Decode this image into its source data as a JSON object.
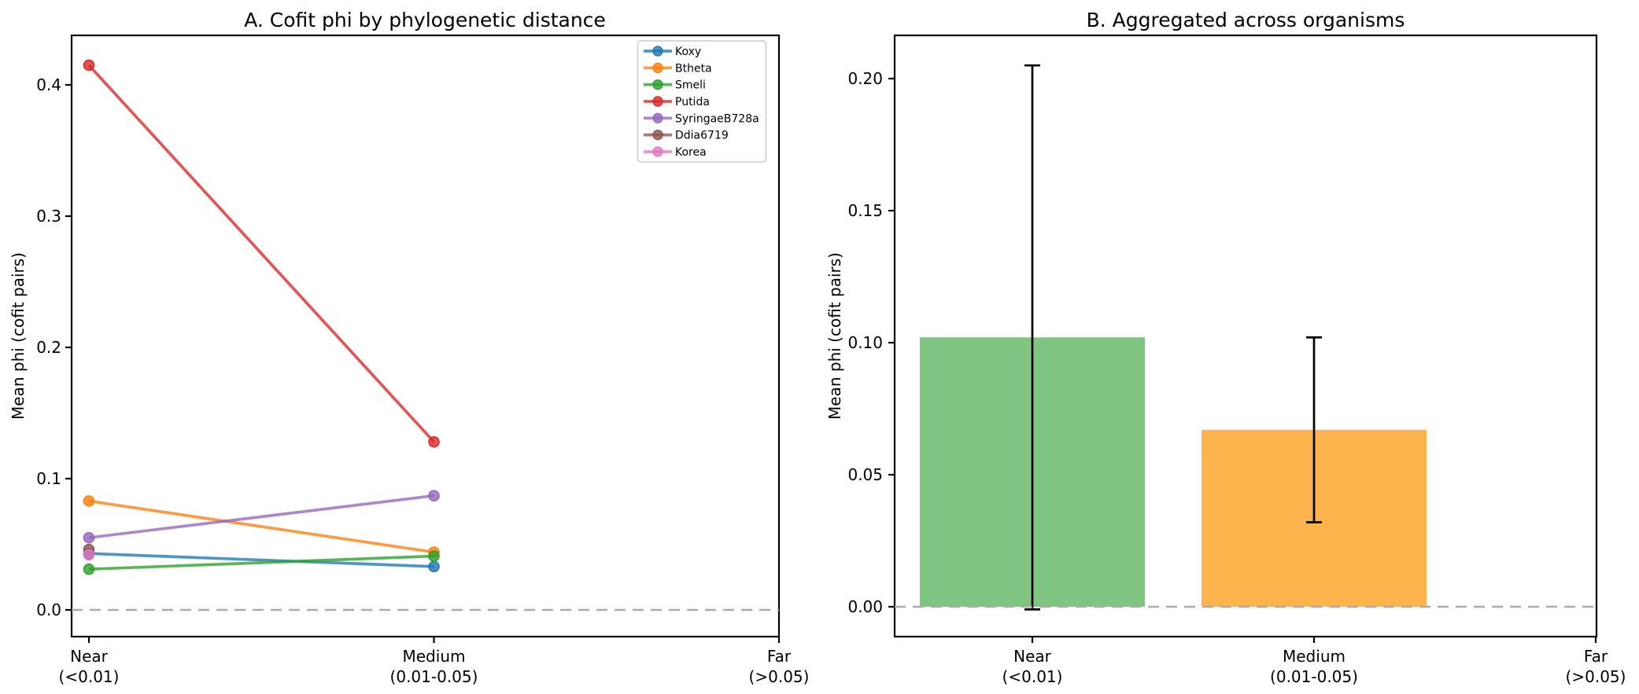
{
  "figure": {
    "background": "#ffffff",
    "zero_line_color": "#ababab",
    "spine_color": "#000000"
  },
  "chart_data": [
    {
      "type": "line",
      "title": "A. Cofit phi by phylogenetic distance",
      "ylabel": "Mean phi (cofit pairs)",
      "xlabel": "",
      "categories": [
        "Near",
        "Medium",
        "Far"
      ],
      "x_tick_lines": [
        [
          "Near",
          "(<0.01)"
        ],
        [
          "Medium",
          "(0.01-0.05)"
        ],
        [
          "Far",
          "(>0.05)"
        ]
      ],
      "yticks": [
        {
          "label": "0.0",
          "value": 0.0
        },
        {
          "label": "0.1",
          "value": 0.1
        },
        {
          "label": "0.2",
          "value": 0.2
        },
        {
          "label": "0.3",
          "value": 0.3
        },
        {
          "label": "0.4",
          "value": 0.4
        }
      ],
      "ylim": [
        -0.0204,
        0.4377
      ],
      "zero_line": 0.0,
      "grid": false,
      "legend_position": "upper right",
      "series": [
        {
          "name": "Koxy",
          "color": "#1f77b4",
          "values": [
            0.043,
            0.033,
            null
          ]
        },
        {
          "name": "Btheta",
          "color": "#ff7f0e",
          "values": [
            0.083,
            0.044,
            null
          ]
        },
        {
          "name": "Smeli",
          "color": "#2ca02c",
          "values": [
            0.031,
            0.041,
            null
          ]
        },
        {
          "name": "Putida",
          "color": "#d62728",
          "values": [
            0.415,
            0.128,
            null
          ]
        },
        {
          "name": "SyringaeB728a",
          "color": "#9467bd",
          "values": [
            0.055,
            0.087,
            null
          ]
        },
        {
          "name": "Ddia6719",
          "color": "#8c564b",
          "values": [
            0.046,
            null,
            null
          ]
        },
        {
          "name": "Korea",
          "color": "#e377c2",
          "values": [
            0.042,
            null,
            null
          ]
        }
      ]
    },
    {
      "type": "bar",
      "title": "B. Aggregated across organisms",
      "ylabel": "Mean phi (cofit pairs)",
      "xlabel": "",
      "categories": [
        "Near",
        "Medium",
        "Far"
      ],
      "x_tick_lines": [
        [
          "Near",
          "(<0.01)"
        ],
        [
          "Medium",
          "(0.01-0.05)"
        ],
        [
          "Far",
          "(>0.05)"
        ]
      ],
      "yticks": [
        {
          "label": "0.00",
          "value": 0.0
        },
        {
          "label": "0.05",
          "value": 0.05
        },
        {
          "label": "0.10",
          "value": 0.1
        },
        {
          "label": "0.15",
          "value": 0.15
        },
        {
          "label": "0.20",
          "value": 0.2
        }
      ],
      "ylim": [
        -0.011,
        0.2164
      ],
      "zero_line": 0.0,
      "grid": false,
      "values": [
        0.102,
        0.067,
        null
      ],
      "bar_colors": [
        "#7fc580",
        "#fdb44d",
        null
      ],
      "error_low": [
        -0.001,
        0.032,
        null
      ],
      "error_high": [
        0.205,
        0.102,
        null
      ],
      "error_color": "#000000"
    }
  ]
}
